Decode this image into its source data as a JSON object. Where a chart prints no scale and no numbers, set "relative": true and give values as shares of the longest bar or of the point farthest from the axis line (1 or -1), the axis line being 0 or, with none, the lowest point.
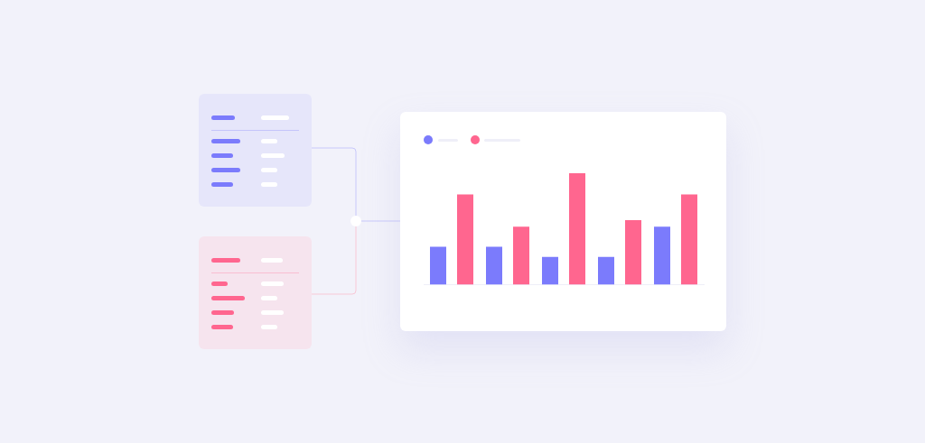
{
  "chart_data": {
    "type": "bar",
    "relative": true,
    "categories": [
      null,
      null,
      null,
      null,
      null
    ],
    "series": [
      {
        "color": "#7b7bfc",
        "values": [
          0.34,
          0.34,
          0.25,
          0.25,
          0.52
        ]
      },
      {
        "color": "#ff668f",
        "values": [
          0.81,
          0.52,
          1,
          0.58,
          0.81
        ]
      }
    ],
    "grid": false,
    "legend": false
  }
}
